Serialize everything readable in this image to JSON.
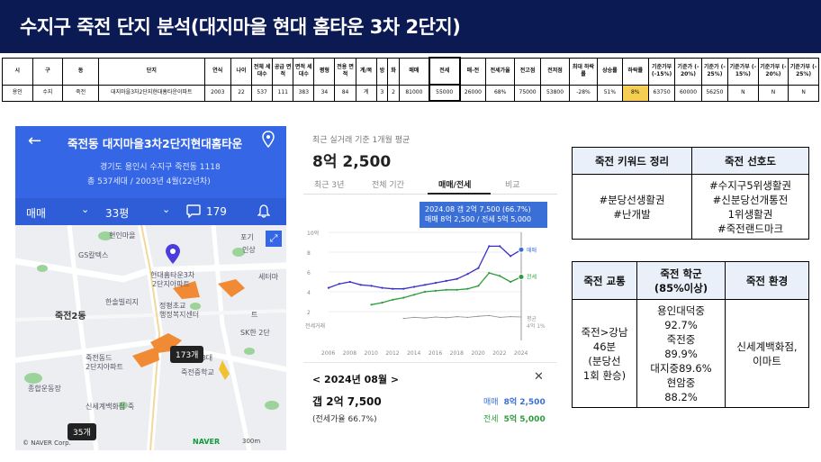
{
  "title": "수지구 죽전 단지 분석(대지마을 현대 홈타운 3차 2단지)",
  "table": {
    "headers": [
      "시",
      "구",
      "동",
      "단지",
      "연식",
      "나이",
      "전체 세대수",
      "공급 면적",
      "면적 세대수",
      "평형",
      "전용 면적",
      "계/복",
      "방",
      "화",
      "매매",
      "전세",
      "매-전",
      "전세가율",
      "전고점",
      "전저점",
      "최대 하락률",
      "상승률",
      "하락률",
      "기준가부 (-15%)",
      "기준가 (-20%)",
      "기준가 (-25%)",
      "기준가부 (-15%)",
      "기준가부 (-20%)",
      "기준가부 (-25%)"
    ],
    "values": [
      "용인",
      "수지",
      "죽전",
      "대지마을3차2단지현대홈타운이파트",
      "2003",
      "22",
      "537",
      "111",
      "383",
      "34",
      "84",
      "계",
      "3",
      "2",
      "81000",
      "55000",
      "26000",
      "68%",
      "75000",
      "53800",
      "-28%",
      "51%",
      "8%",
      "63750",
      "60000",
      "56250",
      "N",
      "N",
      "N"
    ]
  },
  "map": {
    "place": "죽전동 대지마을3차2단지현대홈타운",
    "address": "경기도 용인시 수지구 죽전동 1118",
    "units_year": "총 537세대 / 2003년 4월(22년차)",
    "filter_type": "매매",
    "filter_size": "33평",
    "comment_count": "179",
    "labels": [
      "현인마을",
      "현대홈타운3차",
      "2단지아파트",
      "GS칼텍스",
      "죽전2동",
      "한솔빌리지",
      "정평초교",
      "행정복지센터",
      "죽전동드",
      "2단지아파트",
      "죽전중학교",
      "종합운동장",
      "신세계백화점 죽",
      "죽전3대",
      "세터마",
      "SK한 2단",
      "포기",
      "인상",
      "트"
    ],
    "badges": [
      "173개",
      "35개"
    ],
    "naver_corp": "© NAVER Corp.",
    "naver": "NAVER",
    "scale": "300m"
  },
  "price_panel": {
    "subtitle": "최근 실거래 기준 1개월 평균",
    "price": "8억 2,500",
    "tabs": [
      "최근 3년",
      "전체 기간",
      "매매/전세",
      "비교"
    ],
    "tooltip_line1": "2024.08 갭 2억 7,500 (66.7%)",
    "tooltip_line2": "매매 8억 2,500 / 전세 5억 5,000",
    "month": "2024년 08월",
    "deal_gap": "갭 2억 7,500",
    "ratio": "(전세가율 66.7%)",
    "sale_label": "매매",
    "sale_value": "8억 2,500",
    "jeonse_label": "전세",
    "jeonse_value": "5억 5,000"
  },
  "chart_data": {
    "type": "line",
    "x": [
      2006,
      2007,
      2008,
      2009,
      2010,
      2011,
      2012,
      2013,
      2014,
      2015,
      2016,
      2017,
      2018,
      2019,
      2020,
      2021,
      2022,
      2023,
      2024
    ],
    "ytick_labels": [
      "10억",
      "8",
      "6",
      "4",
      "2"
    ],
    "ylim": [
      0,
      10
    ],
    "series": [
      {
        "name": "매매",
        "color": "#3a2fc9",
        "values": [
          4.4,
          4.8,
          5.0,
          4.7,
          4.6,
          4.4,
          4.3,
          4.3,
          4.5,
          4.7,
          4.9,
          5.1,
          5.3,
          5.8,
          6.4,
          8.6,
          8.6,
          7.6,
          8.25
        ]
      },
      {
        "name": "전세",
        "color": "#2e9c3d",
        "values": [
          null,
          null,
          null,
          null,
          2.7,
          2.9,
          3.2,
          3.4,
          3.7,
          4.0,
          4.1,
          4.2,
          4.2,
          4.3,
          4.6,
          5.9,
          5.6,
          5.0,
          5.5
        ]
      },
      {
        "name": "전세거래",
        "color": "#888888",
        "values": [
          null,
          null,
          null,
          null,
          null,
          null,
          null,
          0.6,
          0.9,
          0.7,
          1.0,
          0.8,
          1.1,
          0.9,
          1.2,
          1.4,
          0.9,
          1.1,
          1.0
        ]
      }
    ],
    "right_labels": [
      "매매",
      "전세",
      "평균",
      "4억 1%"
    ],
    "left_label": "전세거래"
  },
  "keywords": {
    "header_left": "죽전 키워드 정리",
    "header_right": "죽전 선호도",
    "left_lines": [
      "#분당선생활권",
      "#난개발"
    ],
    "right_lines": [
      "#수지구5위생활권",
      "#신분당선개통전",
      "1위생활권",
      "#죽전랜드마크"
    ]
  },
  "transport": {
    "header_1": "죽전 교통",
    "header_2": "죽전 학군\n(85%이상)",
    "header_3": "죽전 환경",
    "col1_lines": [
      "죽전>강남",
      "46분",
      "(분당선",
      "1회 환승)"
    ],
    "col2_lines": [
      "용인대덕중",
      "92.7%",
      "죽전중",
      "89.9%",
      "대지중89.6%",
      "현암중",
      "88.2%"
    ],
    "col3_lines": [
      "신세계백화점,",
      "이마트"
    ]
  }
}
